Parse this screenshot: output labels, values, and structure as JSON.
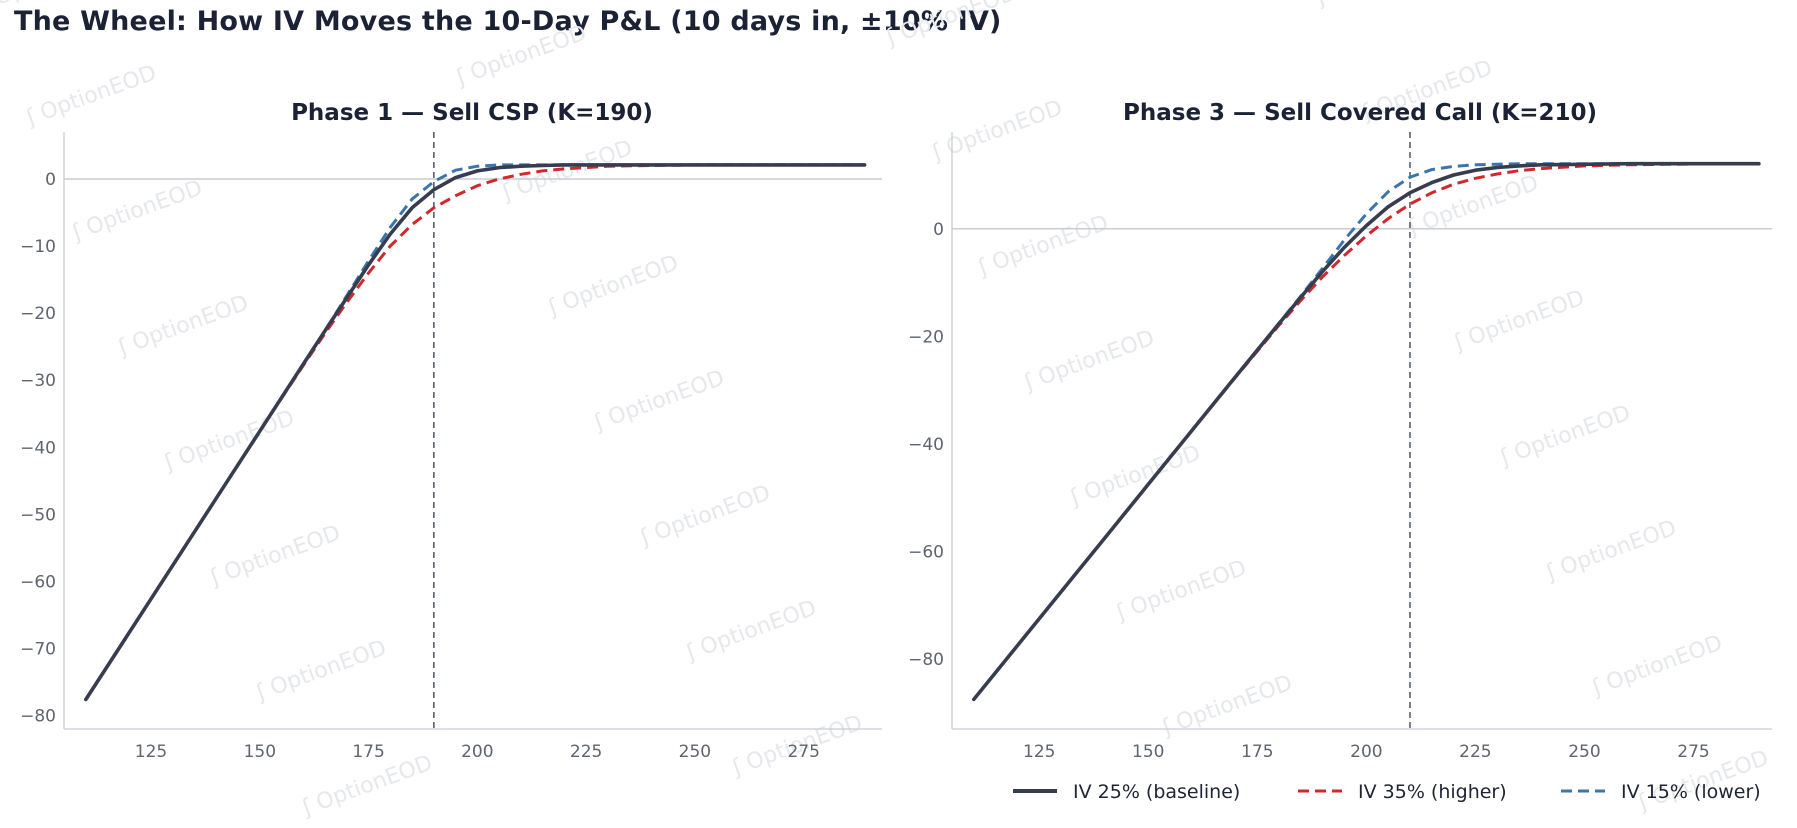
{
  "title": "The Wheel: How IV Moves the 10-Day P&L (10 days in, ±10% IV)",
  "watermark": "OptionEOD",
  "colors": {
    "baseline": "#373d4f",
    "higher": "#d0282d",
    "lower": "#3a76ad",
    "axis": "#c9ccd3",
    "tick_text": "#5f6470",
    "strike_line": "#5a5f6b",
    "watermark": "#e6e8ec"
  },
  "legend": [
    {
      "label": "IV 25% (baseline)",
      "color": "#373d4f",
      "style": "solid"
    },
    {
      "label": "IV 35% (higher)",
      "color": "#d0282d",
      "style": "dashed"
    },
    {
      "label": "IV 15% (lower)",
      "color": "#3a76ad",
      "style": "dashed"
    }
  ],
  "chart_data": [
    {
      "type": "line",
      "title": "Phase 1 — Sell CSP (K=190)",
      "strike": 190,
      "xlim": [
        105,
        293
      ],
      "ylim": [
        -82,
        7
      ],
      "xticks": [
        125,
        150,
        175,
        200,
        225,
        250,
        275
      ],
      "yticks": [
        0,
        -10,
        -20,
        -30,
        -40,
        -50,
        -60,
        -70,
        -80
      ],
      "grid": false,
      "x": [
        110,
        120,
        130,
        140,
        150,
        160,
        165,
        170,
        175,
        180,
        185,
        190,
        195,
        200,
        205,
        210,
        215,
        220,
        225,
        230,
        240,
        250,
        260,
        270,
        280,
        289
      ],
      "series": [
        {
          "name": "IV 25% (baseline)",
          "values": [
            -77.6,
            -67.6,
            -57.6,
            -47.6,
            -37.6,
            -27.6,
            -22.6,
            -17.7,
            -12.8,
            -8.2,
            -4.3,
            -1.6,
            0.2,
            1.2,
            1.7,
            1.9,
            2.0,
            2.1,
            2.1,
            2.1,
            2.1,
            2.1,
            2.1,
            2.1,
            2.1,
            2.1
          ]
        },
        {
          "name": "IV 35% (higher)",
          "values": [
            -77.6,
            -67.6,
            -57.6,
            -47.6,
            -37.6,
            -27.8,
            -23.0,
            -18.4,
            -14.0,
            -10.0,
            -6.8,
            -4.3,
            -2.5,
            -1.0,
            0.0,
            0.7,
            1.2,
            1.5,
            1.7,
            1.9,
            2.0,
            2.1,
            2.1,
            2.1,
            2.1,
            2.1
          ]
        },
        {
          "name": "IV 15% (lower)",
          "values": [
            -77.6,
            -67.6,
            -57.6,
            -47.6,
            -37.6,
            -27.6,
            -22.6,
            -17.4,
            -12.2,
            -7.2,
            -3.0,
            -0.4,
            1.3,
            1.9,
            2.1,
            2.1,
            2.1,
            2.1,
            2.1,
            2.1,
            2.1,
            2.1,
            2.1,
            2.1,
            2.1,
            2.1
          ]
        }
      ]
    },
    {
      "type": "line",
      "title": "Phase 3 — Sell Covered Call (K=210)",
      "strike": 210,
      "xlim": [
        105,
        293
      ],
      "ylim": [
        -93,
        18
      ],
      "xticks": [
        125,
        150,
        175,
        200,
        225,
        250,
        275
      ],
      "yticks": [
        0,
        -20,
        -40,
        -60,
        -80
      ],
      "grid": false,
      "x": [
        110,
        120,
        130,
        140,
        150,
        160,
        170,
        180,
        185,
        190,
        195,
        200,
        205,
        210,
        215,
        220,
        225,
        230,
        235,
        240,
        250,
        260,
        270,
        280,
        290
      ],
      "series": [
        {
          "name": "IV 25% (baseline)",
          "values": [
            -87.5,
            -77.5,
            -67.5,
            -57.5,
            -47.5,
            -37.5,
            -27.5,
            -17.6,
            -12.7,
            -7.9,
            -3.4,
            0.6,
            4.1,
            6.7,
            8.6,
            10.0,
            10.9,
            11.4,
            11.7,
            11.9,
            12.0,
            12.1,
            12.1,
            12.1,
            12.1
          ]
        },
        {
          "name": "IV 35% (higher)",
          "values": [
            -87.5,
            -77.5,
            -67.5,
            -57.5,
            -47.5,
            -37.5,
            -27.6,
            -17.9,
            -13.3,
            -8.9,
            -4.9,
            -1.3,
            1.9,
            4.6,
            6.7,
            8.3,
            9.4,
            10.2,
            10.8,
            11.2,
            11.7,
            11.9,
            12.0,
            12.1,
            12.1
          ]
        },
        {
          "name": "IV 15% (lower)",
          "values": [
            -87.5,
            -77.5,
            -67.5,
            -57.5,
            -47.5,
            -37.5,
            -27.5,
            -17.5,
            -12.5,
            -7.3,
            -2.0,
            2.8,
            6.9,
            9.6,
            11.0,
            11.6,
            11.9,
            12.0,
            12.1,
            12.1,
            12.1,
            12.1,
            12.1,
            12.1,
            12.1
          ]
        }
      ]
    }
  ]
}
